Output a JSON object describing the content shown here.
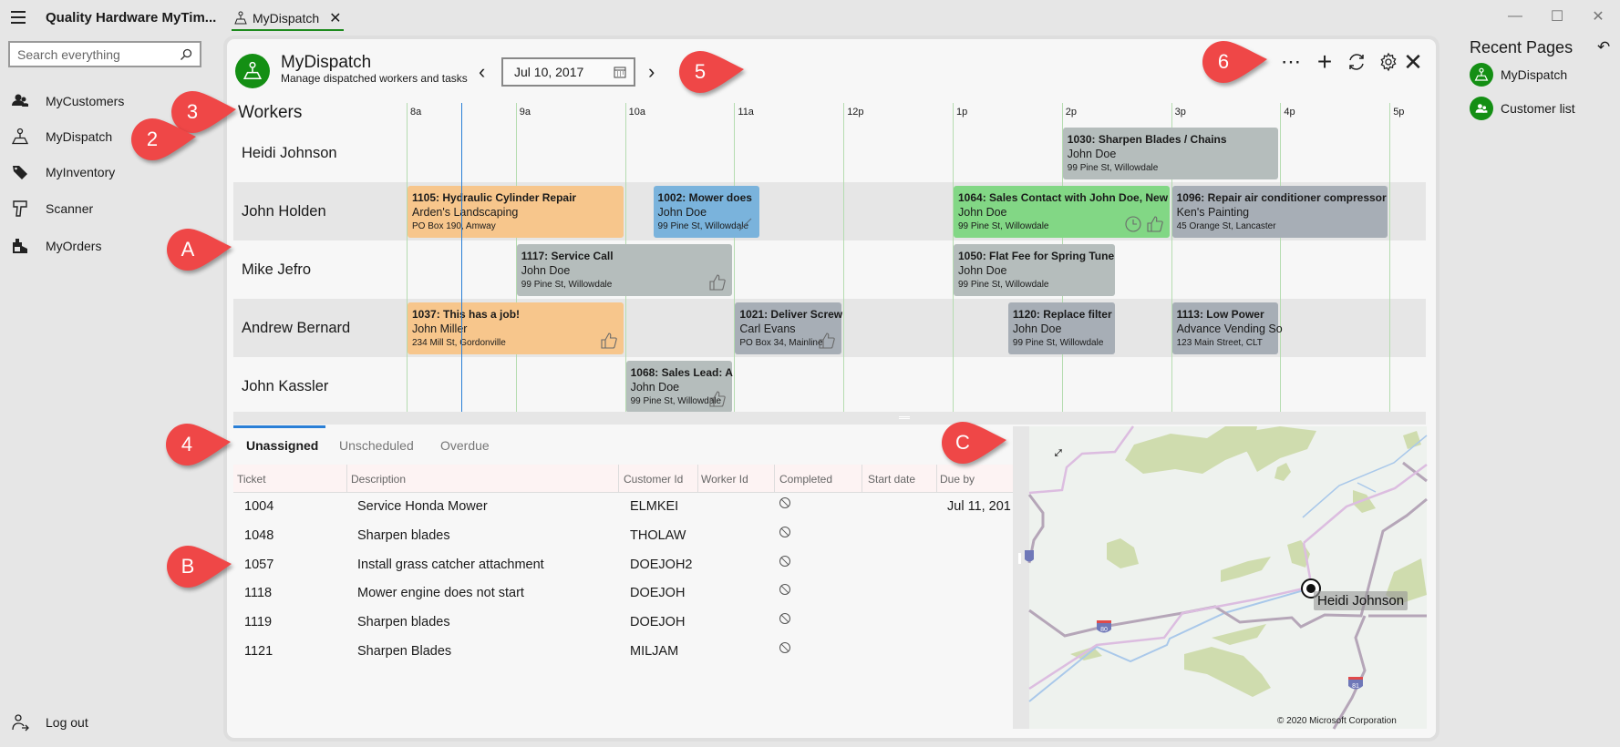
{
  "app": {
    "title": "Quality Hardware MyTim...",
    "tab_label": "MyDispatch"
  },
  "search": {
    "placeholder": "Search everything"
  },
  "nav": [
    {
      "label": "MyCustomers",
      "icon": "customers-icon"
    },
    {
      "label": "MyDispatch",
      "icon": "dispatch-icon"
    },
    {
      "label": "MyInventory",
      "icon": "tag-icon"
    },
    {
      "label": "Scanner",
      "icon": "scanner-icon"
    },
    {
      "label": "MyOrders",
      "icon": "orders-icon"
    }
  ],
  "logout": "Log out",
  "page": {
    "title": "MyDispatch",
    "subtitle": "Manage dispatched workers and tasks",
    "date": "Jul 10, 2017"
  },
  "schedule": {
    "header": "Workers",
    "hours": [
      "8a",
      "9a",
      "10a",
      "11a",
      "12p",
      "1p",
      "2p",
      "3p",
      "4p",
      "5p"
    ],
    "current_time_hour": 8.5,
    "workers": [
      {
        "name": "Heidi Johnson",
        "tasks": [
          {
            "title": "1030: Sharpen Blades /  Chains",
            "customer": "John Doe",
            "address": "99 Pine St, Willowdale",
            "start": 14,
            "end": 16,
            "status": "gray",
            "icons": []
          }
        ]
      },
      {
        "name": "John Holden",
        "tasks": [
          {
            "title": "1105: Hydraulic Cylinder Repair",
            "customer": "Arden's Landscaping",
            "address": "PO Box 190, Amway",
            "start": 8,
            "end": 10,
            "status": "orange",
            "icons": []
          },
          {
            "title": "1002: Mower does",
            "customer": "John Doe",
            "address": "99 Pine St, Willowdale",
            "start": 10.25,
            "end": 11.25,
            "status": "blue",
            "icons": [
              "check"
            ]
          },
          {
            "title": "1064: Sales Contact with John Doe, New",
            "customer": "John Doe",
            "address": "99 Pine St, Willowdale",
            "start": 13,
            "end": 15,
            "status": "green",
            "icons": [
              "clock",
              "thumb"
            ]
          },
          {
            "title": "1096: Repair air conditioner compressor",
            "customer": "Ken's Painting",
            "address": "45 Orange St, Lancaster",
            "start": 15,
            "end": 17,
            "status": "slate",
            "icons": []
          }
        ]
      },
      {
        "name": "Mike Jefro",
        "tasks": [
          {
            "title": "1117: Service Call",
            "customer": "John Doe",
            "address": "99 Pine St, Willowdale",
            "start": 9,
            "end": 11,
            "status": "gray",
            "icons": [
              "thumb"
            ]
          },
          {
            "title": "1050: Flat Fee for Spring Tune",
            "customer": "John Doe",
            "address": "99 Pine St, Willowdale",
            "start": 13,
            "end": 14.5,
            "status": "gray",
            "icons": []
          }
        ]
      },
      {
        "name": "Andrew Bernard",
        "tasks": [
          {
            "title": "1037: This has a job!",
            "customer": "John Miller",
            "address": "234 Mill St, Gordonville",
            "start": 8,
            "end": 10,
            "status": "orange",
            "icons": [
              "thumb"
            ]
          },
          {
            "title": "1021: Deliver Screw",
            "customer": "Carl Evans",
            "address": "PO Box 34, Mainline",
            "start": 11,
            "end": 12,
            "status": "slate",
            "icons": [
              "thumb"
            ]
          },
          {
            "title": "1120: Replace filter",
            "customer": "John Doe",
            "address": "99 Pine St, Willowdale",
            "start": 13.5,
            "end": 14.5,
            "status": "slate",
            "icons": []
          },
          {
            "title": "1113: Low Power",
            "customer": "Advance Vending So",
            "address": "123 Main Street, CLT",
            "start": 15,
            "end": 16,
            "status": "slate",
            "icons": []
          }
        ]
      },
      {
        "name": "John Kassler",
        "tasks": [
          {
            "title": "1068: Sales Lead: A",
            "customer": "John Doe",
            "address": "99 Pine St, Willowdale",
            "start": 10,
            "end": 11,
            "status": "gray",
            "icons": [
              "thumb"
            ]
          }
        ]
      }
    ]
  },
  "bottom_tabs": [
    "Unassigned",
    "Unscheduled",
    "Overdue"
  ],
  "table": {
    "columns": [
      "Ticket",
      "Description",
      "Customer Id",
      "Worker Id",
      "Completed",
      "Start date",
      "Due by"
    ],
    "rows": [
      {
        "ticket": "1004",
        "description": "Service Honda Mower",
        "customer_id": "ELMKEI",
        "worker_id": "",
        "completed": false,
        "start_date": "",
        "due_by": "Jul 11, 201"
      },
      {
        "ticket": "1048",
        "description": "Sharpen blades",
        "customer_id": "THOLAW",
        "worker_id": "",
        "completed": false,
        "start_date": "",
        "due_by": ""
      },
      {
        "ticket": "1057",
        "description": "Install grass catcher attachment",
        "customer_id": "DOEJOH2",
        "worker_id": "",
        "completed": false,
        "start_date": "",
        "due_by": ""
      },
      {
        "ticket": "1118",
        "description": "Mower engine does not start",
        "customer_id": "DOEJOH",
        "worker_id": "",
        "completed": false,
        "start_date": "",
        "due_by": ""
      },
      {
        "ticket": "1119",
        "description": "Sharpen blades",
        "customer_id": "DOEJOH",
        "worker_id": "",
        "completed": false,
        "start_date": "",
        "due_by": ""
      },
      {
        "ticket": "1121",
        "description": "Sharpen Blades",
        "customer_id": "MILJAM",
        "worker_id": "",
        "completed": false,
        "start_date": "",
        "due_by": ""
      }
    ]
  },
  "map": {
    "marker_label": "Heidi Johnson",
    "copyright": "© 2020 Microsoft Corporation",
    "shields": [
      "80",
      "81"
    ]
  },
  "recent": {
    "title": "Recent Pages",
    "items": [
      "MyDispatch",
      "Customer list"
    ]
  },
  "annotations": [
    "3",
    "2",
    "A",
    "4",
    "B",
    "C",
    "5",
    "6"
  ],
  "colors": {
    "brand": "#148f14",
    "accent": "#2a7fd6",
    "orange": "#f7c68c",
    "blue": "#7ab3dc",
    "green": "#82d785",
    "gray": "#b5bdbc",
    "slate": "#a7aeb6",
    "annotation": "#ef4747"
  }
}
